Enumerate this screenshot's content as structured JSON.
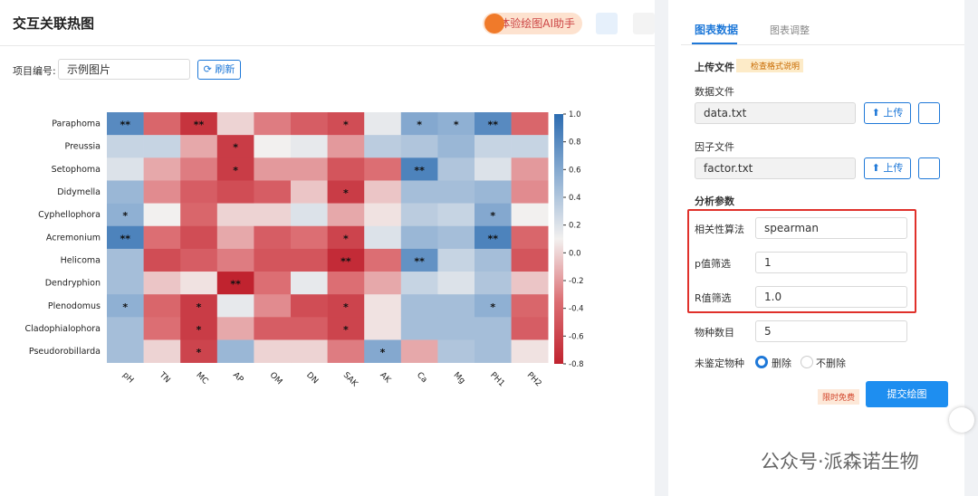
{
  "header": {
    "title": "交互关联热图",
    "ai_button": "体验绘图AI助手"
  },
  "toolbar": {
    "project_label": "项目编号:",
    "project_value": "示例图片",
    "refresh": "刷新"
  },
  "chart_data": {
    "type": "heatmap",
    "rows": [
      "Paraphoma",
      "Preussia",
      "Setophoma",
      "Didymella",
      "Cyphellophora",
      "Acremonium",
      "Helicoma",
      "Dendryphion",
      "Plenodomus",
      "Cladophialophora",
      "Pseudorobillarda"
    ],
    "columns": [
      "pH",
      "TN",
      "MC",
      "AP",
      "OM",
      "DN",
      "SAK",
      "AK",
      "Ca",
      "Mg",
      "PH1",
      "PH2"
    ],
    "values": [
      [
        0.8,
        -0.4,
        -0.7,
        0.0,
        -0.3,
        -0.45,
        -0.55,
        0.15,
        0.6,
        0.55,
        0.8,
        -0.4
      ],
      [
        0.3,
        0.3,
        -0.15,
        -0.65,
        0.1,
        0.15,
        -0.2,
        0.35,
        0.4,
        0.5,
        0.3,
        0.3
      ],
      [
        0.2,
        -0.15,
        -0.3,
        -0.65,
        -0.2,
        -0.2,
        -0.5,
        -0.35,
        0.85,
        0.4,
        0.2,
        -0.2
      ],
      [
        0.5,
        -0.25,
        -0.45,
        -0.55,
        -0.45,
        -0.05,
        -0.65,
        -0.05,
        0.45,
        0.45,
        0.5,
        -0.25
      ],
      [
        0.55,
        0.1,
        -0.4,
        0.0,
        0.0,
        0.2,
        -0.15,
        0.05,
        0.35,
        0.3,
        0.6,
        0.1
      ],
      [
        0.85,
        -0.35,
        -0.55,
        -0.15,
        -0.45,
        -0.35,
        -0.6,
        0.2,
        0.5,
        0.45,
        0.85,
        -0.4
      ],
      [
        0.45,
        -0.55,
        -0.45,
        -0.3,
        -0.5,
        -0.5,
        -0.75,
        -0.35,
        0.75,
        0.3,
        0.45,
        -0.5
      ],
      [
        0.45,
        -0.05,
        0.05,
        -0.8,
        -0.35,
        0.15,
        -0.35,
        -0.15,
        0.3,
        0.2,
        0.4,
        -0.05
      ],
      [
        0.55,
        -0.4,
        -0.65,
        0.15,
        -0.25,
        -0.55,
        -0.6,
        0.05,
        0.45,
        0.45,
        0.55,
        -0.4
      ],
      [
        0.45,
        -0.35,
        -0.65,
        -0.15,
        -0.45,
        -0.45,
        -0.6,
        0.05,
        0.45,
        0.45,
        0.45,
        -0.45
      ],
      [
        0.45,
        0.0,
        -0.6,
        0.5,
        0.0,
        0.0,
        -0.3,
        0.6,
        -0.15,
        0.4,
        0.45,
        0.05
      ]
    ],
    "stars": [
      [
        "**",
        null,
        "**",
        null,
        null,
        null,
        "*",
        null,
        "*",
        "*",
        "**",
        null
      ],
      [
        null,
        null,
        null,
        "*",
        null,
        null,
        null,
        null,
        null,
        null,
        null,
        null
      ],
      [
        null,
        null,
        null,
        "*",
        null,
        null,
        null,
        null,
        "**",
        null,
        null,
        null
      ],
      [
        null,
        null,
        null,
        null,
        null,
        null,
        "*",
        null,
        null,
        null,
        null,
        null
      ],
      [
        "*",
        null,
        null,
        null,
        null,
        null,
        null,
        null,
        null,
        null,
        "*",
        null
      ],
      [
        "**",
        null,
        null,
        null,
        null,
        null,
        "*",
        null,
        null,
        null,
        "**",
        null
      ],
      [
        null,
        null,
        null,
        null,
        null,
        null,
        "**",
        null,
        "**",
        null,
        null,
        null
      ],
      [
        null,
        null,
        null,
        "**",
        null,
        null,
        null,
        null,
        null,
        null,
        null,
        null
      ],
      [
        "*",
        null,
        "*",
        null,
        null,
        null,
        "*",
        null,
        null,
        null,
        "*",
        null
      ],
      [
        null,
        null,
        "*",
        null,
        null,
        null,
        "*",
        null,
        null,
        null,
        null,
        null
      ],
      [
        null,
        null,
        "*",
        null,
        null,
        null,
        null,
        "*",
        null,
        null,
        null,
        null
      ]
    ],
    "clim": [
      -0.8,
      1.0
    ],
    "cticks": [
      {
        "value": 1.0,
        "label": "1.0"
      },
      0.8,
      0.6,
      0.4,
      0.2,
      {
        "value": 0,
        "label": "0.0"
      },
      -0.2,
      -0.4,
      -0.6,
      -0.8
    ],
    "colormap": [
      "#c0232f",
      "#dc6e73",
      "#f2f0ef",
      "#8fb0d3",
      "#2c6cb1"
    ]
  },
  "panel": {
    "tabs": [
      "图表数据",
      "图表调整"
    ],
    "upload_title": "上传文件",
    "format_help": "检查格式说明",
    "data_file": {
      "label": "数据文件",
      "value": "data.txt",
      "button": "上传"
    },
    "factor_file": {
      "label": "因子文件",
      "value": "factor.txt",
      "button": "上传"
    },
    "params_title": "分析参数",
    "fields": [
      {
        "label": "相关性算法",
        "value": "spearman"
      },
      {
        "label": "p值筛选",
        "value": "1"
      },
      {
        "label": "R值筛选",
        "value": "1.0"
      },
      {
        "label": "物种数目",
        "value": "5"
      }
    ],
    "unidentified": {
      "label": "未鉴定物种",
      "options": [
        "删除",
        "不删除"
      ]
    },
    "badge": "限时免费",
    "submit": "提交绘图"
  },
  "watermark": "公众号·派森诺生物"
}
